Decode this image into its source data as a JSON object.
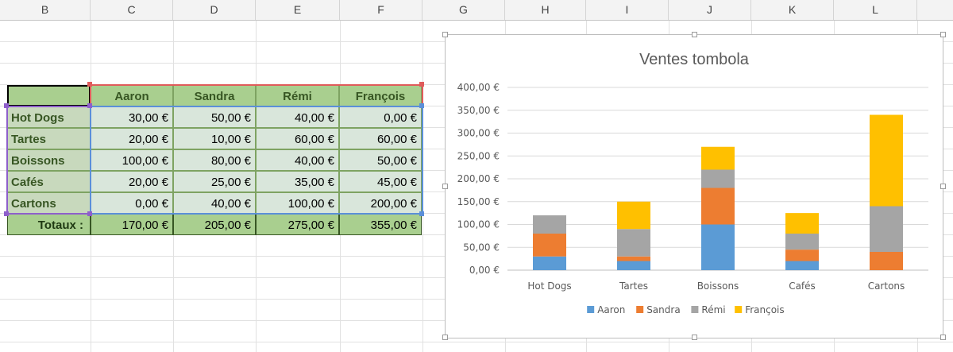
{
  "columns": [
    "B",
    "C",
    "D",
    "E",
    "F",
    "G",
    "H",
    "I",
    "J",
    "K",
    "L"
  ],
  "table": {
    "headers": [
      "Aaron",
      "Sandra",
      "Rémi",
      "François"
    ],
    "rows": [
      {
        "label": "Hot Dogs",
        "cells": [
          "30,00 €",
          "50,00 €",
          "40,00 €",
          "0,00 €"
        ]
      },
      {
        "label": "Tartes",
        "cells": [
          "20,00 €",
          "10,00 €",
          "60,00 €",
          "60,00 €"
        ]
      },
      {
        "label": "Boissons",
        "cells": [
          "100,00 €",
          "80,00 €",
          "40,00 €",
          "50,00 €"
        ]
      },
      {
        "label": "Cafés",
        "cells": [
          "20,00 €",
          "25,00 €",
          "35,00 €",
          "45,00 €"
        ]
      },
      {
        "label": "Cartons",
        "cells": [
          "0,00 €",
          "40,00 €",
          "100,00 €",
          "200,00 €"
        ]
      }
    ],
    "totals_label": "Totaux :",
    "totals": [
      "170,00 €",
      "205,00 €",
      "275,00 €",
      "355,00 €"
    ]
  },
  "chart_data": {
    "type": "bar",
    "stacked": true,
    "title": "Ventes tombola",
    "categories": [
      "Hot Dogs",
      "Tartes",
      "Boissons",
      "Cafés",
      "Cartons"
    ],
    "series": [
      {
        "name": "Aaron",
        "color": "#5b9bd5",
        "values": [
          30,
          20,
          100,
          20,
          0
        ]
      },
      {
        "name": "Sandra",
        "color": "#ed7d31",
        "values": [
          50,
          10,
          80,
          25,
          40
        ]
      },
      {
        "name": "Rémi",
        "color": "#a5a5a5",
        "values": [
          40,
          60,
          40,
          35,
          100
        ]
      },
      {
        "name": "François",
        "color": "#ffc000",
        "values": [
          0,
          60,
          50,
          45,
          200
        ]
      }
    ],
    "ylim": [
      0,
      400
    ],
    "yticks": [
      "0,00 €",
      "50,00 €",
      "100,00 €",
      "150,00 €",
      "200,00 €",
      "250,00 €",
      "300,00 €",
      "350,00 €",
      "400,00 €"
    ],
    "grid": true,
    "legend": "bottom"
  }
}
